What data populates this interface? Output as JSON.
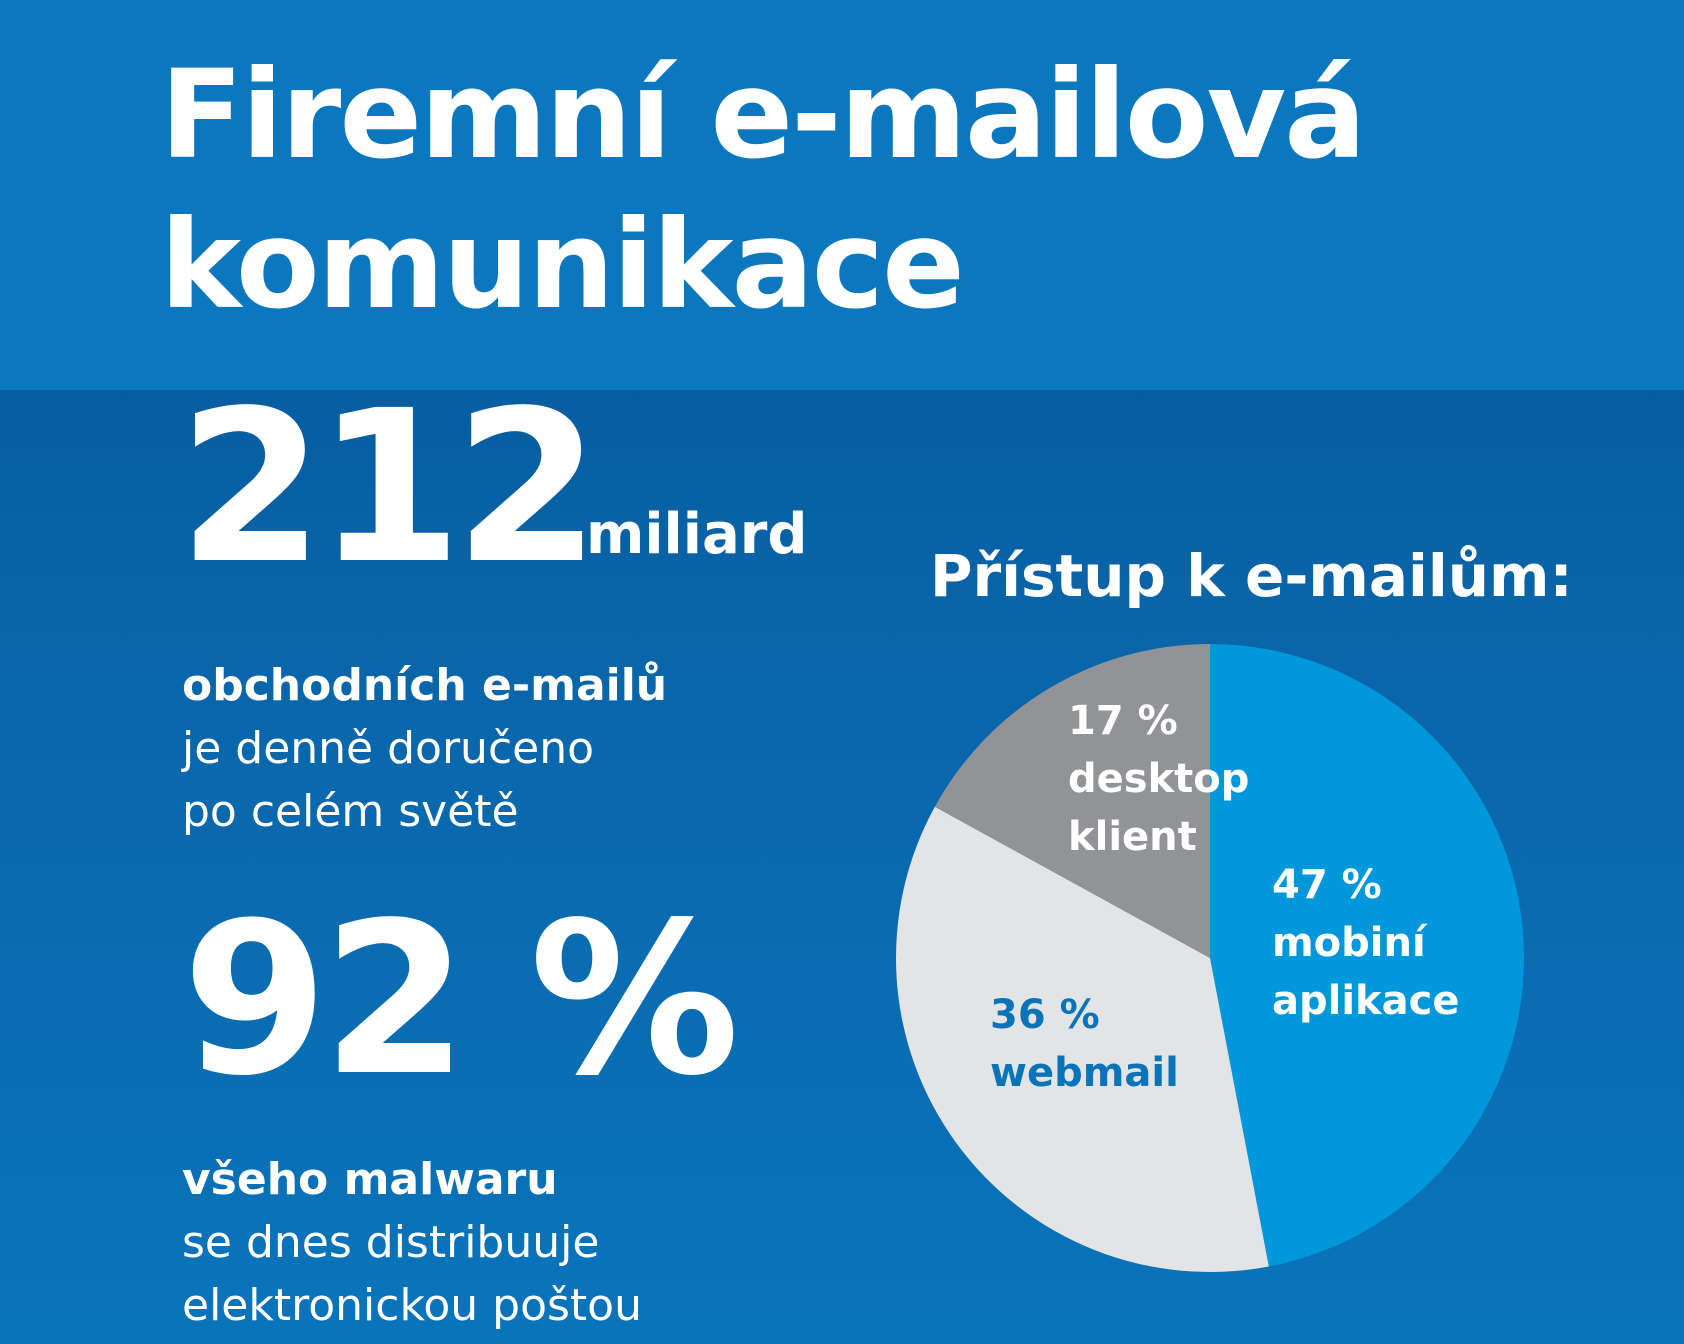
{
  "header": {
    "title_line1": "Firemní e-mailová",
    "title_line2": "komunikace"
  },
  "stat_emails": {
    "value": "212",
    "unit": "miliard",
    "bold": "obchodních e-mailů",
    "line2": "je denně doručeno",
    "line3": "po celém světě"
  },
  "stat_malware": {
    "value": "92 %",
    "bold": "všeho malwaru",
    "line2": "se dnes distribuuje",
    "line3": "elektronickou poštou"
  },
  "colors": {
    "header_bg": "#0a77bf",
    "mobile": "#0098da",
    "webmail": "#e3e4e6",
    "desktop": "#929396",
    "webmail_text": "#0a74bb"
  },
  "chart_data": {
    "type": "pie",
    "title": "Přístup k e-mailům:",
    "slices": [
      {
        "label": "mobiní aplikace",
        "value": 47,
        "value_label": "47 %",
        "lines": [
          "47 %",
          "mobiní",
          "aplikace"
        ],
        "color": "#0098da",
        "text_color": "#ffffff"
      },
      {
        "label": "webmail",
        "value": 36,
        "value_label": "36 %",
        "lines": [
          "36 %",
          "webmail"
        ],
        "color": "#e3e4e6",
        "text_color": "#0a74bb"
      },
      {
        "label": "desktop klient",
        "value": 17,
        "value_label": "17 %",
        "lines": [
          "17 %",
          "desktop",
          "klient"
        ],
        "color": "#929396",
        "text_color": "#ffffff"
      }
    ]
  }
}
